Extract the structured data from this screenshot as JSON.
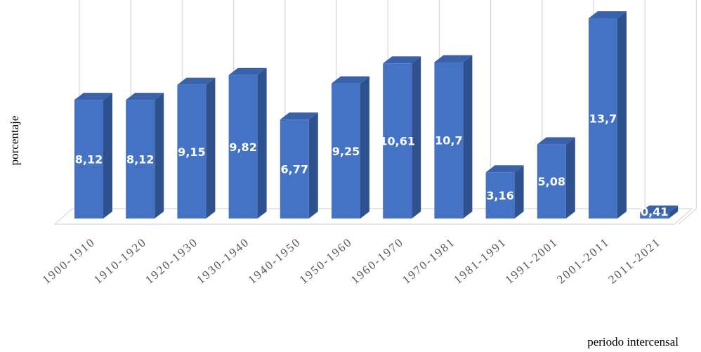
{
  "chart_data": {
    "type": "bar",
    "categories": [
      "1900-1910",
      "1910-1920",
      "1920-1930",
      "1930-1940",
      "1940-1950",
      "1950-1960",
      "1960-1970",
      "1970-1981",
      "1981-1991",
      "1991-2001",
      "2001-2011",
      "2011-2021"
    ],
    "values": [
      8.12,
      8.12,
      9.15,
      9.82,
      6.77,
      9.25,
      10.61,
      10.7,
      3.16,
      5.08,
      13.7,
      0.41
    ],
    "data_labels": [
      "8,12",
      "8,12",
      "9,15",
      "9,82",
      "6,77",
      "9,25",
      "10,61",
      "10,7",
      "3,16",
      "5,08",
      "13,7",
      "0,41"
    ],
    "title": "",
    "xlabel": "periodo intercensal",
    "ylabel": "porcentaje",
    "ylim": [
      0,
      14.5
    ],
    "grid": true,
    "bar_style": "3d",
    "colors": {
      "bar_front": "#4472C4",
      "bar_side": "#2F528F",
      "bar_top": "#3A62AB",
      "grid": "#D9D9D9",
      "label": "#FFFFFF"
    }
  }
}
